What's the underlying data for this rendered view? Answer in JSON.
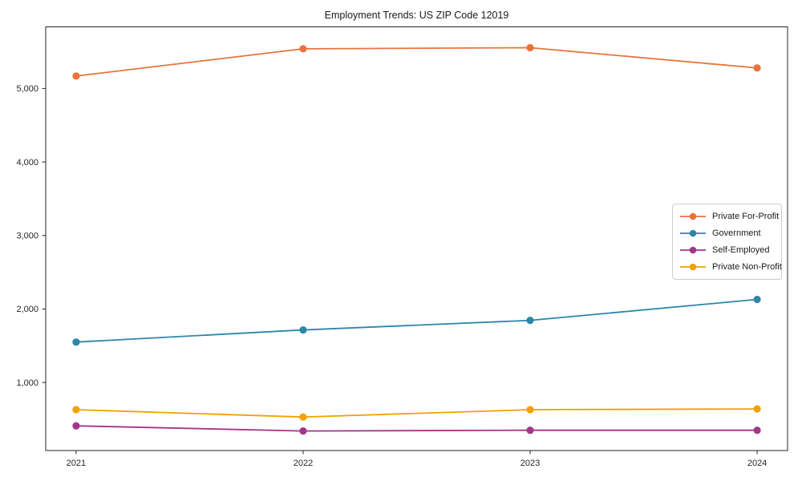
{
  "page": {
    "background_color": "#ffffff",
    "text_color": "#1a1a1a",
    "axis_color": "#262626"
  },
  "chart_data": {
    "type": "line",
    "title": "Employment Trends: US ZIP Code 12019",
    "x_categories": [
      "2021",
      "2022",
      "2023",
      "2024"
    ],
    "series": [
      {
        "name": "Private For-Profit",
        "color": "#e8743b",
        "values": [
          5170,
          5540,
          5555,
          5280
        ]
      },
      {
        "name": "Government",
        "color": "#2d87a9",
        "values": [
          1550,
          1715,
          1845,
          2130
        ]
      },
      {
        "name": "Self-Employed",
        "color": "#a23689",
        "values": [
          410,
          340,
          350,
          350
        ]
      },
      {
        "name": "Private Non-Profit",
        "color": "#f2a104",
        "values": [
          630,
          530,
          630,
          640
        ]
      }
    ],
    "yticks": [
      {
        "value": 1000,
        "label": "1,000"
      },
      {
        "value": 2000,
        "label": "2,000"
      },
      {
        "value": 3000,
        "label": "3,000"
      },
      {
        "value": 4000,
        "label": "4,000"
      },
      {
        "value": 5000,
        "label": "5,000"
      }
    ],
    "ylim": [
      74,
      5839
    ],
    "xlabel": "",
    "ylabel": "",
    "grid": false,
    "marker": "circle",
    "legend_position": "center-right"
  }
}
